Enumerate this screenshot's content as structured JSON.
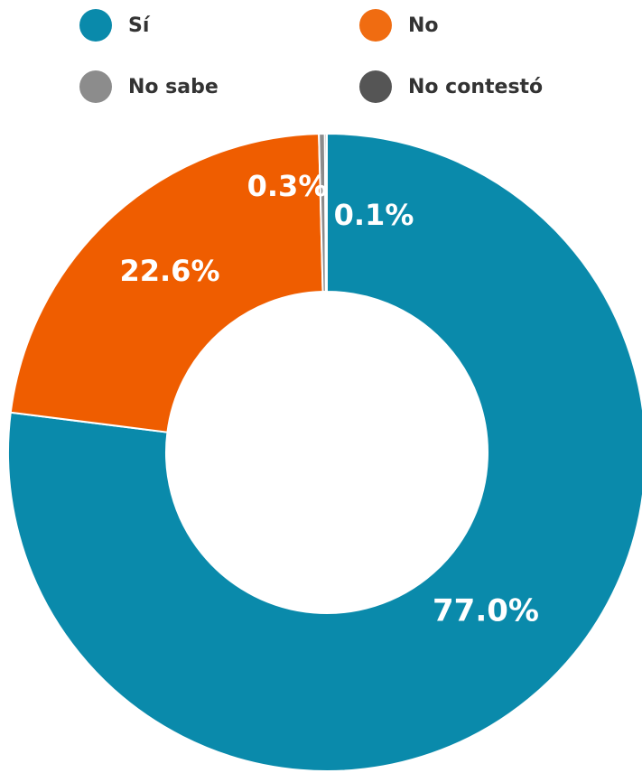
{
  "chart_data": {
    "type": "pie",
    "variant": "donut",
    "categories": [
      "Sí",
      "No",
      "No sabe",
      "No contestó"
    ],
    "values": [
      77.0,
      22.6,
      0.3,
      0.1
    ],
    "data_labels": [
      "77.0%",
      "22.6%",
      "0.3%",
      "0.1%"
    ],
    "colors": [
      "#0a8aab",
      "#ef5d00",
      "#8c8c8c",
      "#555555"
    ],
    "title": "",
    "legend_position": "top"
  },
  "legend": [
    {
      "label": "Sí",
      "color": "#0a8aab"
    },
    {
      "label": "No",
      "color": "#f06c11"
    },
    {
      "label": "No sabe",
      "color": "#8c8c8c"
    },
    {
      "label": "No contestó",
      "color": "#555555"
    }
  ]
}
